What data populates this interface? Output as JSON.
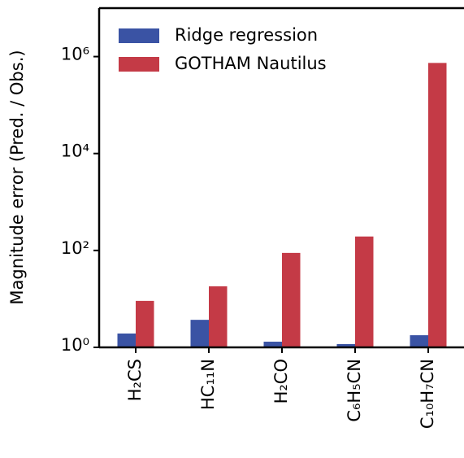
{
  "chart_data": {
    "type": "bar",
    "log_y": true,
    "ylabel": "Magnitude error (Pred. / Obs.)",
    "categories": [
      "H₂CS",
      "HC₁₁N",
      "H₂CO",
      "C₆H₅CN",
      "C₁₀H₇CN"
    ],
    "series": [
      {
        "name": "Ridge regression",
        "color": "#3a53a4",
        "values": [
          1.93,
          3.7,
          1.31,
          1.17,
          1.78
        ]
      },
      {
        "name": "GOTHAM Nautilus",
        "color": "#c43a46",
        "values": [
          9.1,
          18.2,
          89,
          194,
          740000
        ]
      }
    ],
    "ylim": [
      1,
      10000000
    ],
    "yticks": [
      {
        "value": 1,
        "label": "10⁰"
      },
      {
        "value": 100,
        "label": "10²"
      },
      {
        "value": 10000,
        "label": "10⁴"
      },
      {
        "value": 1000000,
        "label": "10⁶"
      }
    ],
    "legend": "upper left"
  }
}
